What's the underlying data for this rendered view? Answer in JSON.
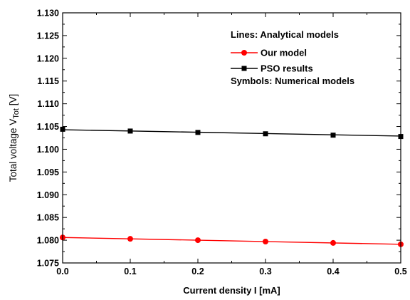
{
  "chart_data": {
    "type": "line",
    "xlabel": "Current density I [mA]",
    "ylabel_main": "Total voltage V",
    "ylabel_sub": "Tot",
    "ylabel_unit": " [V]",
    "xlim": [
      0.0,
      0.5
    ],
    "ylim": [
      1.075,
      1.13
    ],
    "x_ticks": [
      "0.0",
      "0.1",
      "0.2",
      "0.3",
      "0.4",
      "0.5"
    ],
    "y_ticks": [
      "1.075",
      "1.080",
      "1.085",
      "1.090",
      "1.095",
      "1.100",
      "1.105",
      "1.110",
      "1.115",
      "1.120",
      "1.125",
      "1.130"
    ],
    "grid": false,
    "legend_position": "top-right",
    "legend": {
      "header_lines": "Lines: Analytical models",
      "header_symbols": "Symbols: Numerical models"
    },
    "x": [
      0.0,
      0.1,
      0.2,
      0.3,
      0.4,
      0.5
    ],
    "series": [
      {
        "name": "Our model",
        "color": "#ff0000",
        "marker": "circle",
        "line_y": [
          1.0806,
          1.0791
        ],
        "values": [
          1.0806,
          1.0803,
          1.08,
          1.0797,
          1.0794,
          1.0791
        ]
      },
      {
        "name": "PSO results",
        "color": "#000000",
        "marker": "square",
        "line_y": [
          1.1043,
          1.1029
        ],
        "values": [
          1.1044,
          1.104,
          1.1037,
          1.1034,
          1.1031,
          1.1028
        ]
      }
    ]
  }
}
